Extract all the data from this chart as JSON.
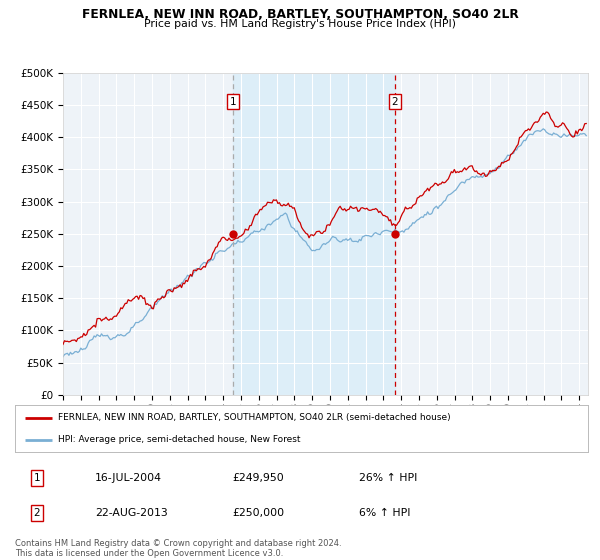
{
  "title": "FERNLEA, NEW INN ROAD, BARTLEY, SOUTHAMPTON, SO40 2LR",
  "subtitle": "Price paid vs. HM Land Registry's House Price Index (HPI)",
  "legend_line1": "FERNLEA, NEW INN ROAD, BARTLEY, SOUTHAMPTON, SO40 2LR (semi-detached house)",
  "legend_line2": "HPI: Average price, semi-detached house, New Forest",
  "annotation1_date": "16-JUL-2004",
  "annotation1_price": "£249,950",
  "annotation1_hpi": "26% ↑ HPI",
  "annotation2_date": "22-AUG-2013",
  "annotation2_price": "£250,000",
  "annotation2_hpi": "6% ↑ HPI",
  "footer": "Contains HM Land Registry data © Crown copyright and database right 2024.\nThis data is licensed under the Open Government Licence v3.0.",
  "sale1_year": 2004.542,
  "sale1_value": 249950,
  "sale2_year": 2013.644,
  "sale2_value": 250000,
  "red_color": "#cc0000",
  "blue_color": "#7aafd4",
  "span_color": "#ddeef8",
  "bg_color": "#eef3f8",
  "grid_color": "#ffffff",
  "ylim_max": 500000,
  "ylim_min": 0,
  "xlim_min": 1995,
  "xlim_max": 2024.5,
  "vline1_x": 2004.542,
  "vline2_x": 2013.644
}
